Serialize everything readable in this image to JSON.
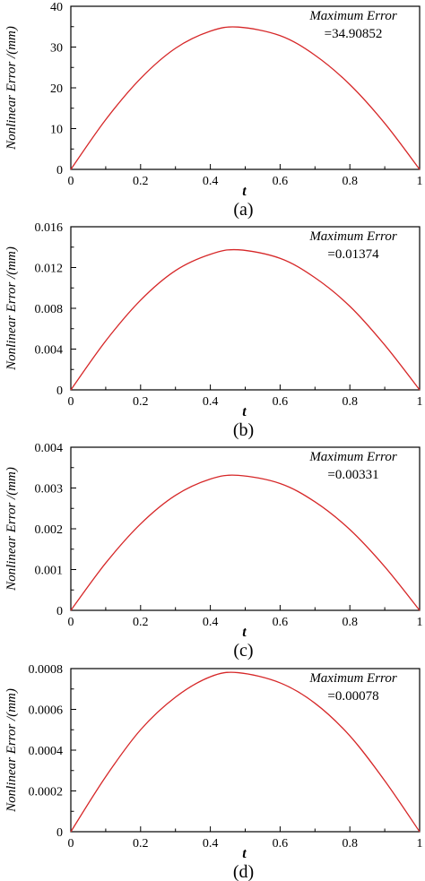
{
  "chart_data": [
    {
      "type": "line",
      "panel_label": "(a)",
      "xlabel": "t",
      "ylabel": "Nonlinear Error /(mm)",
      "xlim": [
        0,
        1
      ],
      "ylim": [
        0,
        40
      ],
      "xticks": [
        0,
        0.2,
        0.4,
        0.6,
        0.8,
        1
      ],
      "xtick_labels": [
        "0",
        "0.2",
        "0.4",
        "0.6",
        "0.8",
        "1"
      ],
      "yticks": [
        0,
        10,
        20,
        30,
        40
      ],
      "ytick_labels": [
        "0",
        "10",
        "20",
        "30",
        "40"
      ],
      "annotation": {
        "title": "Maximum Error",
        "value": "=34.90852"
      },
      "series": [
        {
          "color": "#d62728",
          "x": [
            0,
            0.1,
            0.2,
            0.3,
            0.4,
            0.48,
            0.6,
            0.7,
            0.8,
            0.9,
            1
          ],
          "y": [
            0,
            12.2,
            22.3,
            29.7,
            33.9,
            34.9,
            32.8,
            28.0,
            20.8,
            11.3,
            0
          ]
        }
      ]
    },
    {
      "type": "line",
      "panel_label": "(b)",
      "xlabel": "t",
      "ylabel": "Nonlinear Error /(mm)",
      "xlim": [
        0,
        1
      ],
      "ylim": [
        0,
        0.016
      ],
      "xticks": [
        0,
        0.2,
        0.4,
        0.6,
        0.8,
        1
      ],
      "xtick_labels": [
        "0",
        "0.2",
        "0.4",
        "0.6",
        "0.8",
        "1"
      ],
      "yticks": [
        0,
        0.004,
        0.008,
        0.012,
        0.016
      ],
      "ytick_labels": [
        "0",
        "0.004",
        "0.008",
        "0.012",
        "0.016"
      ],
      "annotation": {
        "title": "Maximum Error",
        "value": "=0.01374"
      },
      "series": [
        {
          "color": "#d62728",
          "x": [
            0,
            0.1,
            0.2,
            0.3,
            0.4,
            0.48,
            0.6,
            0.7,
            0.8,
            0.9,
            1
          ],
          "y": [
            0,
            0.0048,
            0.0088,
            0.0117,
            0.0133,
            0.01374,
            0.0129,
            0.011,
            0.0082,
            0.0044,
            0
          ]
        }
      ]
    },
    {
      "type": "line",
      "panel_label": "(c)",
      "xlabel": "t",
      "ylabel": "Nonlinear Error /(mm)",
      "xlim": [
        0,
        1
      ],
      "ylim": [
        0,
        0.004
      ],
      "xticks": [
        0,
        0.2,
        0.4,
        0.6,
        0.8,
        1
      ],
      "xtick_labels": [
        "0",
        "0.2",
        "0.4",
        "0.6",
        "0.8",
        "1"
      ],
      "yticks": [
        0,
        0.001,
        0.002,
        0.003,
        0.004
      ],
      "ytick_labels": [
        "0",
        "0.001",
        "0.002",
        "0.003",
        "0.004"
      ],
      "annotation": {
        "title": "Maximum Error",
        "value": "=0.00331"
      },
      "series": [
        {
          "color": "#d62728",
          "x": [
            0,
            0.1,
            0.2,
            0.3,
            0.4,
            0.48,
            0.6,
            0.7,
            0.8,
            0.9,
            1
          ],
          "y": [
            0,
            0.00116,
            0.00212,
            0.00282,
            0.00322,
            0.00331,
            0.00311,
            0.00266,
            0.00198,
            0.00107,
            0
          ]
        }
      ]
    },
    {
      "type": "line",
      "panel_label": "(d)",
      "xlabel": "t",
      "ylabel": "Nonlinear Error /(mm)",
      "xlim": [
        0,
        1
      ],
      "ylim": [
        0,
        0.0008
      ],
      "xticks": [
        0,
        0.2,
        0.4,
        0.6,
        0.8,
        1
      ],
      "xtick_labels": [
        "0",
        "0.2",
        "0.4",
        "0.6",
        "0.8",
        "1"
      ],
      "yticks": [
        0,
        0.0002,
        0.0004,
        0.0006,
        0.0008
      ],
      "ytick_labels": [
        "0",
        "0.0002",
        "0.0004",
        "0.0006",
        "0.0008"
      ],
      "annotation": {
        "title": "Maximum Error",
        "value": "=0.00078"
      },
      "series": [
        {
          "color": "#d62728",
          "x": [
            0,
            0.1,
            0.2,
            0.3,
            0.4,
            0.48,
            0.6,
            0.7,
            0.8,
            0.9,
            1
          ],
          "y": [
            0,
            0.00027,
            0.0005,
            0.00066,
            0.00076,
            0.00078,
            0.00073,
            0.00063,
            0.00047,
            0.00025,
            0
          ]
        }
      ]
    }
  ]
}
